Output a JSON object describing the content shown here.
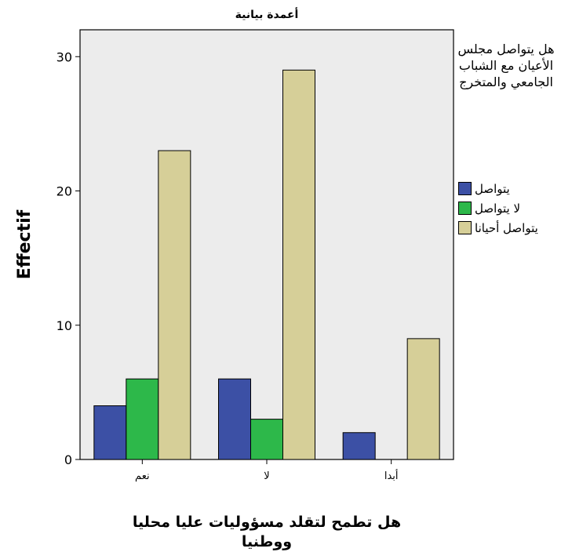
{
  "chart_data": {
    "type": "bar",
    "title": "أعمدة بيانية",
    "xlabel": "هل تطمح لتقلد مسؤوليات عليا محليا ووطنيا",
    "ylabel": "Effectif",
    "categories": [
      "نعم",
      "لا",
      "أبدا"
    ],
    "series": [
      {
        "name": "يتواصل",
        "color": "#3c50a5",
        "values": [
          4,
          6,
          2
        ]
      },
      {
        "name": "لا يتواصل",
        "color": "#2db84a",
        "values": [
          6,
          3,
          0
        ]
      },
      {
        "name": "يتواصل أحيانا",
        "color": "#d6cf98",
        "values": [
          23,
          29,
          9
        ]
      }
    ],
    "yticks": [
      0,
      10,
      20,
      30
    ],
    "ylim": [
      0,
      32
    ],
    "grid": false,
    "legend_title": "هل يتواصل مجلس الأعيان مع الشباب الجامعي والمتخرج",
    "legend_position": "right",
    "plot_background": "#ececec"
  }
}
